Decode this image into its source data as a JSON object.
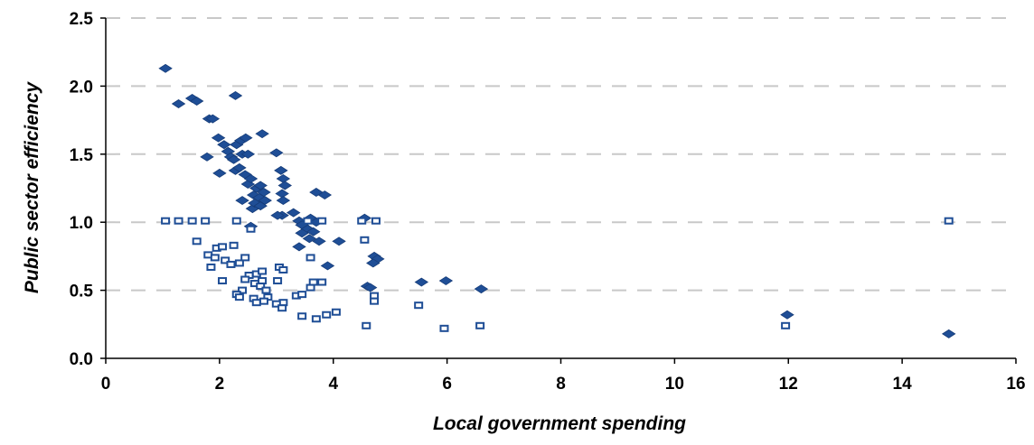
{
  "chart_data": {
    "type": "scatter",
    "xlabel": "Local government spending",
    "ylabel": "Public sector efficiency",
    "xlim": [
      0,
      16
    ],
    "ylim": [
      0,
      2.5
    ],
    "xticks": [
      "0",
      "2",
      "4",
      "6",
      "8",
      "10",
      "12",
      "14",
      "16"
    ],
    "yticks": [
      "0.0",
      "0.5",
      "1.0",
      "1.5",
      "2.0",
      "2.5"
    ],
    "grid": "horizontal-dashed",
    "colors": {
      "diamond": "#1f4e96",
      "square": "#1f4e96",
      "grid": "#c8c8c8"
    },
    "series": [
      {
        "marker": "filled-diamond",
        "points": [
          [
            1.05,
            2.13
          ],
          [
            1.28,
            1.87
          ],
          [
            1.52,
            1.91
          ],
          [
            1.6,
            1.89
          ],
          [
            1.82,
            1.76
          ],
          [
            1.88,
            1.76
          ],
          [
            2.28,
            1.93
          ],
          [
            1.98,
            1.62
          ],
          [
            2.08,
            1.57
          ],
          [
            2.15,
            1.52
          ],
          [
            2.2,
            1.48
          ],
          [
            2.3,
            1.57
          ],
          [
            2.38,
            1.6
          ],
          [
            2.46,
            1.62
          ],
          [
            2.75,
            1.65
          ],
          [
            1.78,
            1.48
          ],
          [
            2.25,
            1.46
          ],
          [
            2.4,
            1.5
          ],
          [
            2.5,
            1.5
          ],
          [
            2.0,
            1.36
          ],
          [
            2.28,
            1.38
          ],
          [
            2.35,
            1.4
          ],
          [
            2.45,
            1.35
          ],
          [
            2.5,
            1.28
          ],
          [
            2.55,
            1.32
          ],
          [
            2.65,
            1.25
          ],
          [
            2.72,
            1.27
          ],
          [
            2.78,
            1.22
          ],
          [
            2.6,
            1.2
          ],
          [
            2.7,
            1.18
          ],
          [
            2.8,
            1.16
          ],
          [
            2.4,
            1.16
          ],
          [
            2.58,
            1.1
          ],
          [
            2.62,
            1.14
          ],
          [
            2.72,
            1.12
          ],
          [
            3.0,
            1.51
          ],
          [
            3.08,
            1.38
          ],
          [
            3.12,
            1.32
          ],
          [
            3.15,
            1.27
          ],
          [
            3.1,
            1.21
          ],
          [
            3.12,
            1.16
          ],
          [
            3.1,
            1.05
          ],
          [
            3.02,
            1.05
          ],
          [
            3.3,
            1.07
          ],
          [
            3.4,
            1.01
          ],
          [
            3.45,
            0.98
          ],
          [
            3.55,
            0.95
          ],
          [
            3.6,
            1.03
          ],
          [
            3.65,
            0.93
          ],
          [
            3.7,
            1.0
          ],
          [
            3.58,
            0.88
          ],
          [
            3.45,
            0.92
          ],
          [
            3.75,
            0.86
          ],
          [
            3.7,
            1.22
          ],
          [
            3.85,
            1.2
          ],
          [
            3.4,
            0.82
          ],
          [
            4.1,
            0.86
          ],
          [
            3.9,
            0.68
          ],
          [
            4.55,
            1.03
          ],
          [
            4.6,
            0.53
          ],
          [
            4.65,
            0.52
          ],
          [
            4.72,
            0.75
          ],
          [
            4.78,
            0.73
          ],
          [
            4.7,
            0.7
          ],
          [
            5.55,
            0.56
          ],
          [
            5.98,
            0.57
          ],
          [
            6.6,
            0.51
          ],
          [
            11.98,
            0.32
          ],
          [
            14.82,
            0.18
          ],
          [
            2.55,
            0.97
          ]
        ]
      },
      {
        "marker": "hollow-square",
        "points": [
          [
            1.05,
            1.01
          ],
          [
            1.28,
            1.01
          ],
          [
            1.52,
            1.01
          ],
          [
            1.75,
            1.01
          ],
          [
            2.3,
            1.01
          ],
          [
            4.5,
            1.01
          ],
          [
            4.75,
            1.01
          ],
          [
            3.8,
            1.01
          ],
          [
            3.55,
            1.01
          ],
          [
            14.82,
            1.01
          ],
          [
            1.6,
            0.86
          ],
          [
            1.95,
            0.81
          ],
          [
            2.05,
            0.82
          ],
          [
            2.25,
            0.83
          ],
          [
            1.8,
            0.76
          ],
          [
            1.92,
            0.74
          ],
          [
            2.1,
            0.72
          ],
          [
            2.2,
            0.69
          ],
          [
            2.35,
            0.7
          ],
          [
            2.45,
            0.74
          ],
          [
            1.85,
            0.67
          ],
          [
            2.52,
            0.61
          ],
          [
            2.65,
            0.62
          ],
          [
            2.75,
            0.64
          ],
          [
            2.75,
            0.57
          ],
          [
            2.45,
            0.58
          ],
          [
            2.05,
            0.57
          ],
          [
            2.62,
            0.55
          ],
          [
            2.72,
            0.53
          ],
          [
            2.82,
            0.5
          ],
          [
            2.85,
            0.45
          ],
          [
            2.4,
            0.5
          ],
          [
            2.3,
            0.47
          ],
          [
            2.35,
            0.45
          ],
          [
            2.6,
            0.44
          ],
          [
            2.65,
            0.41
          ],
          [
            2.78,
            0.42
          ],
          [
            3.05,
            0.67
          ],
          [
            3.12,
            0.65
          ],
          [
            3.02,
            0.57
          ],
          [
            3.12,
            0.41
          ],
          [
            3.0,
            0.4
          ],
          [
            3.1,
            0.37
          ],
          [
            3.35,
            0.46
          ],
          [
            3.45,
            0.47
          ],
          [
            3.6,
            0.52
          ],
          [
            3.65,
            0.56
          ],
          [
            3.6,
            0.74
          ],
          [
            3.8,
            0.56
          ],
          [
            3.45,
            0.31
          ],
          [
            3.7,
            0.29
          ],
          [
            3.88,
            0.32
          ],
          [
            4.05,
            0.34
          ],
          [
            4.55,
            0.87
          ],
          [
            4.72,
            0.46
          ],
          [
            4.72,
            0.42
          ],
          [
            4.58,
            0.24
          ],
          [
            5.5,
            0.39
          ],
          [
            5.95,
            0.22
          ],
          [
            6.58,
            0.24
          ],
          [
            11.95,
            0.24
          ],
          [
            2.55,
            0.95
          ]
        ]
      }
    ]
  }
}
